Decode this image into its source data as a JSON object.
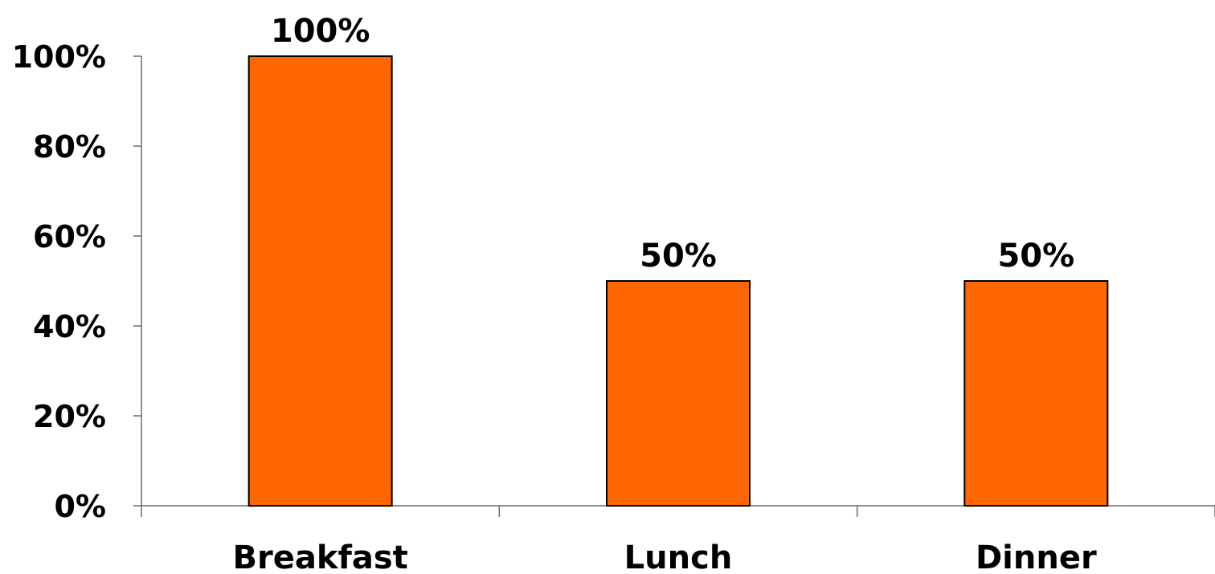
{
  "chart_data": {
    "type": "bar",
    "categories": [
      "Breakfast",
      "Lunch",
      "Dinner"
    ],
    "values": [
      100,
      50,
      50
    ],
    "data_labels": [
      "100%",
      "50%",
      "50%"
    ],
    "y_ticks": [
      {
        "value": 0,
        "label": "0%"
      },
      {
        "value": 20,
        "label": "20%"
      },
      {
        "value": 40,
        "label": "40%"
      },
      {
        "value": 60,
        "label": "60%"
      },
      {
        "value": 80,
        "label": "80%"
      },
      {
        "value": 100,
        "label": "100%"
      }
    ],
    "ylim": [
      0,
      100
    ],
    "grid": false,
    "legend": "none",
    "title": "",
    "xlabel": "",
    "ylabel": "",
    "colors": {
      "bar_fill": "#ff6600",
      "bar_stroke": "#000000"
    }
  }
}
